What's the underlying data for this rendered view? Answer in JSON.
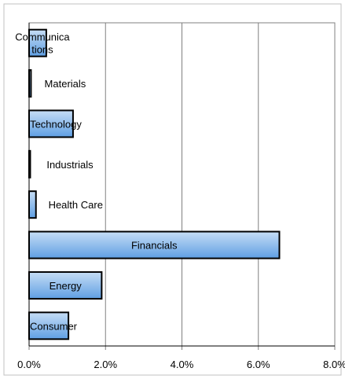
{
  "chart_data": {
    "type": "bar",
    "orientation": "horizontal",
    "categories": [
      "Communications",
      "Materials",
      "Technology",
      "Industrials",
      "Health Care",
      "Financials",
      "Energy",
      "Consumer"
    ],
    "label_lines": [
      [
        "Communica",
        "tions"
      ],
      [
        "Materials"
      ],
      [
        "Technology"
      ],
      [
        "Industrials"
      ],
      [
        "Health Care"
      ],
      [
        "Financials"
      ],
      [
        "Energy"
      ],
      [
        "Consumer"
      ]
    ],
    "values": [
      0.45,
      0.05,
      1.15,
      0.03,
      0.18,
      6.55,
      1.9,
      1.03
    ],
    "xlim": [
      0,
      8
    ],
    "xticks": [
      0,
      2,
      4,
      6,
      8
    ],
    "xtick_labels": [
      "0.0%",
      "2.0%",
      "4.0%",
      "6.0%",
      "8.0%"
    ],
    "grid": true,
    "title": "",
    "xlabel": "",
    "ylabel": "",
    "colors": {
      "bar_fill_top": "#c6ddf5",
      "bar_fill_bottom": "#5f9fe3",
      "bar_stroke": "#000000",
      "grid": "#808080"
    }
  }
}
